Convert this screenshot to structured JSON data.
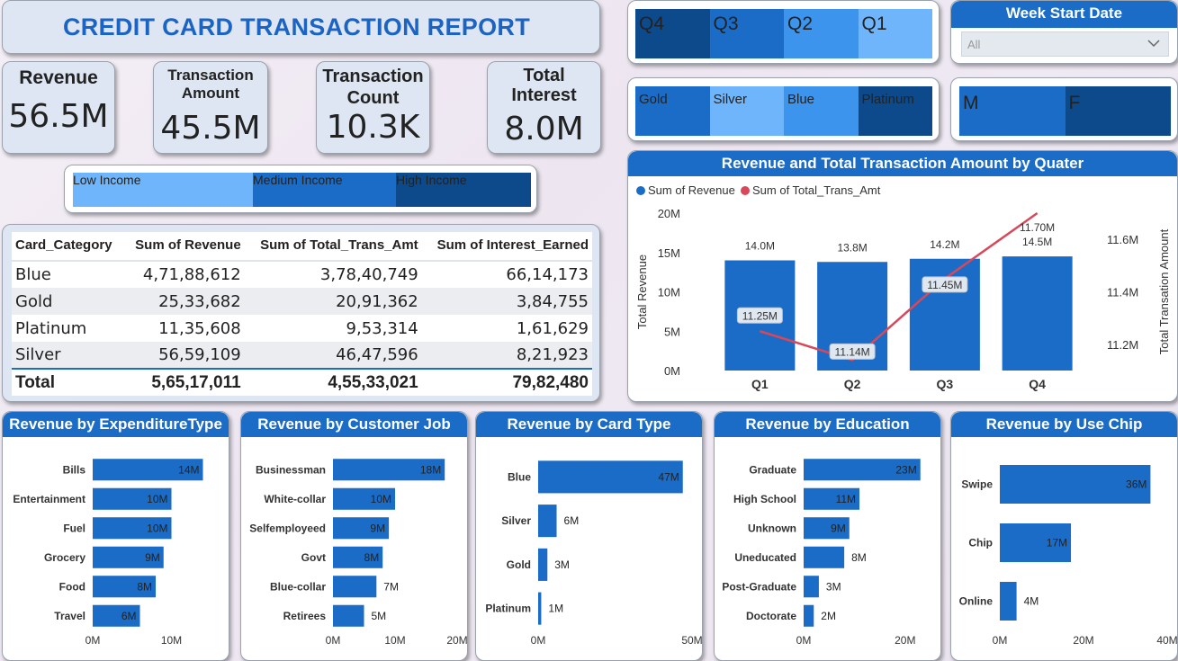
{
  "title": "CREDIT CARD TRANSACTION REPORT",
  "kpis": {
    "revenue": {
      "label": "Revenue",
      "value": "56.5M"
    },
    "amount": {
      "label_line1": "Transaction",
      "label_line2": "Amount",
      "value": "45.5M"
    },
    "count": {
      "label_line1": "Transaction",
      "label_line2": "Count",
      "value": "10.3K"
    },
    "interest": {
      "label_line1": "Total",
      "label_line2": "Interest",
      "value": "8.0M"
    }
  },
  "income_slicer": [
    {
      "label": "Low Income",
      "color": "#6fb5fb"
    },
    {
      "label": "Medium Income",
      "color": "#1a6cc6"
    },
    {
      "label": "High Income",
      "color": "#0d4a8c"
    }
  ],
  "quarter_slicer": [
    {
      "label": "Q4",
      "color": "#0d4a8c"
    },
    {
      "label": "Q3",
      "color": "#1a6cc6"
    },
    {
      "label": "Q2",
      "color": "#3d94ec"
    },
    {
      "label": "Q1",
      "color": "#6fb5fb"
    }
  ],
  "week_slicer": {
    "header": "Week Start Date",
    "selected": "All"
  },
  "cardtype_slicer": [
    {
      "label": "Gold",
      "color": "#1a6cc6"
    },
    {
      "label": "Silver",
      "color": "#6fb5fb"
    },
    {
      "label": "Blue",
      "color": "#3d94ec"
    },
    {
      "label": "Platinum",
      "color": "#0d4a8c"
    }
  ],
  "gender_slicer": [
    {
      "label": "M",
      "color": "#1a6cc6"
    },
    {
      "label": "F",
      "color": "#0d4a8c"
    }
  ],
  "table": {
    "headers": [
      "Card_Category",
      "Sum of Revenue",
      "Sum of Total_Trans_Amt",
      "Sum of Interest_Earned"
    ],
    "rows": [
      [
        "Blue",
        "4,71,88,612",
        "3,78,40,749",
        "66,14,173"
      ],
      [
        "Gold",
        "25,33,682",
        "20,91,362",
        "3,84,755"
      ],
      [
        "Platinum",
        "11,35,608",
        "9,53,314",
        "1,61,629"
      ],
      [
        "Silver",
        "56,59,109",
        "46,47,596",
        "8,21,923"
      ]
    ],
    "total": [
      "Total",
      "5,65,17,011",
      "4,55,33,021",
      "79,82,480"
    ]
  },
  "colors": {
    "bar": "#1a6cc6",
    "line": "#d9475a",
    "header": "#1a6cc6"
  },
  "chart_data": [
    {
      "type": "bar",
      "title": "Revenue and Total Transaction Amount by Quater",
      "categories": [
        "Q1",
        "Q2",
        "Q3",
        "Q4"
      ],
      "series": [
        {
          "name": "Sum of Revenue",
          "values": [
            14.0,
            13.8,
            14.2,
            14.5
          ],
          "labels": [
            "14.0M",
            "13.8M",
            "14.2M",
            "14.5M"
          ],
          "axis": "left"
        },
        {
          "name": "Sum of Total_Trans_Amt",
          "values": [
            11.25,
            11.14,
            11.45,
            11.7
          ],
          "labels": [
            "11.25M",
            "11.14M",
            "11.45M",
            "11.70M"
          ],
          "axis": "right",
          "type": "line"
        }
      ],
      "ylabel": "Total Revenue",
      "y2label": "Total Transation Amount",
      "yticks": [
        "0M",
        "5M",
        "10M",
        "15M",
        "20M"
      ],
      "y2ticks": [
        "11.2M",
        "11.4M",
        "11.6M"
      ],
      "ylim": [
        0,
        20
      ],
      "y2lim": [
        11.1,
        11.7
      ],
      "legend": "top-left"
    },
    {
      "type": "bar",
      "orientation": "horizontal",
      "title": "Revenue by ExpenditureType",
      "categories": [
        "Bills",
        "Entertainment",
        "Fuel",
        "Grocery",
        "Food",
        "Travel"
      ],
      "values": [
        14,
        10,
        10,
        9,
        8,
        6
      ],
      "labels": [
        "14M",
        "10M",
        "10M",
        "9M",
        "8M",
        "6M"
      ],
      "xticks": [
        "0M",
        "10M"
      ],
      "xlim": [
        0,
        16
      ]
    },
    {
      "type": "bar",
      "orientation": "horizontal",
      "title": "Revenue by Customer Job",
      "categories": [
        "Businessman",
        "White-collar",
        "Selfemployeed",
        "Govt",
        "Blue-collar",
        "Retirees"
      ],
      "values": [
        18,
        10,
        9,
        8,
        7,
        5
      ],
      "labels": [
        "18M",
        "10M",
        "9M",
        "8M",
        "7M",
        "5M"
      ],
      "xticks": [
        "0M",
        "10M",
        "20M"
      ],
      "xlim": [
        0,
        20
      ]
    },
    {
      "type": "bar",
      "orientation": "horizontal",
      "title": "Revenue by Card Type",
      "categories": [
        "Blue",
        "Silver",
        "Gold",
        "Platinum"
      ],
      "values": [
        47,
        6,
        3,
        1
      ],
      "labels": [
        "47M",
        "6M",
        "3M",
        "1M"
      ],
      "xticks": [
        "0M",
        "50M"
      ],
      "xlim": [
        0,
        50
      ]
    },
    {
      "type": "bar",
      "orientation": "horizontal",
      "title": "Revenue by Education",
      "categories": [
        "Graduate",
        "High School",
        "Unknown",
        "Uneducated",
        "Post-Graduate",
        "Doctorate"
      ],
      "values": [
        23,
        11,
        9,
        8,
        3,
        2
      ],
      "labels": [
        "23M",
        "11M",
        "9M",
        "8M",
        "3M",
        "2M"
      ],
      "xticks": [
        "0M",
        "20M"
      ],
      "xlim": [
        0,
        25
      ]
    },
    {
      "type": "bar",
      "orientation": "horizontal",
      "title": "Revenue by Use Chip",
      "categories": [
        "Swipe",
        "Chip",
        "Online"
      ],
      "values": [
        36,
        17,
        4
      ],
      "labels": [
        "36M",
        "17M",
        "4M"
      ],
      "xticks": [
        "0M",
        "20M",
        "40M"
      ],
      "xlim": [
        0,
        40
      ]
    }
  ]
}
